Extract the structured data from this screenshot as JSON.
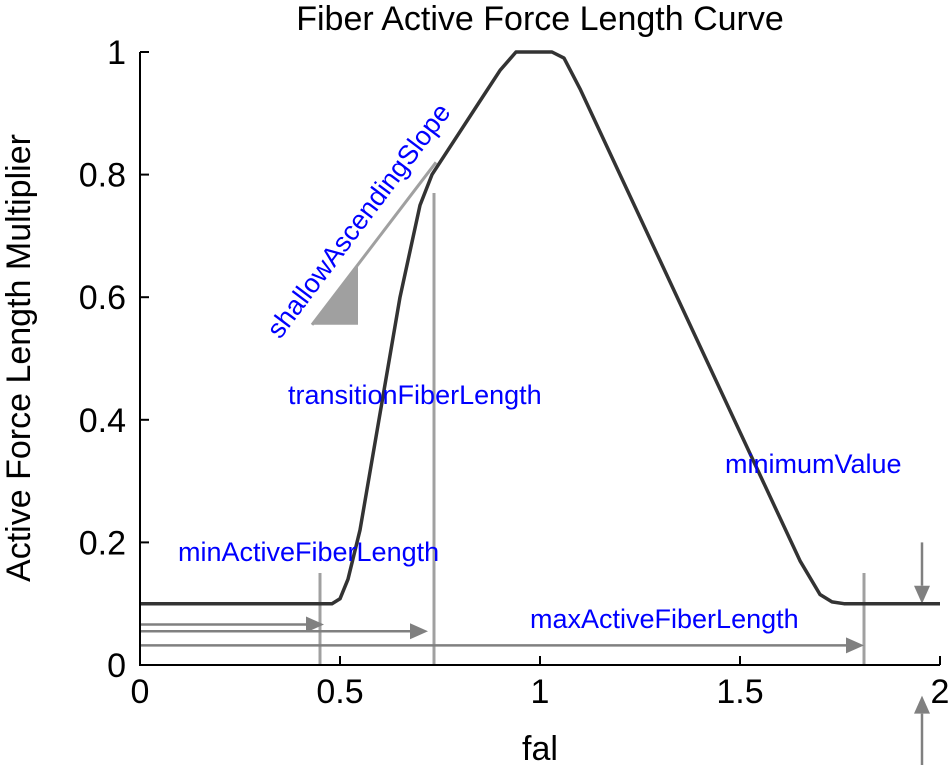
{
  "chart_data": {
    "type": "line",
    "title": "Fiber Active Force Length Curve",
    "xlabel": "fal",
    "ylabel": "Active Force Length Multiplier",
    "xlim": [
      0,
      2
    ],
    "ylim": [
      0,
      1
    ],
    "xticks": [
      {
        "value": 0,
        "label": "0"
      },
      {
        "value": 0.5,
        "label": "0.5"
      },
      {
        "value": 1,
        "label": "1"
      },
      {
        "value": 1.5,
        "label": "1.5"
      },
      {
        "value": 2,
        "label": "2"
      }
    ],
    "yticks": [
      {
        "value": 0,
        "label": "0"
      },
      {
        "value": 0.2,
        "label": "0.2"
      },
      {
        "value": 0.4,
        "label": "0.4"
      },
      {
        "value": 0.6,
        "label": "0.6"
      },
      {
        "value": 0.8,
        "label": "0.8"
      },
      {
        "value": 1,
        "label": "1"
      }
    ],
    "grid": false,
    "series": [
      {
        "color": "#333333",
        "x": [
          0,
          0.45,
          0.48,
          0.5,
          0.52,
          0.55,
          0.6,
          0.65,
          0.7,
          0.73,
          0.75,
          0.8,
          0.85,
          0.9,
          0.94,
          0.97,
          1.0,
          1.03,
          1.06,
          1.1,
          1.2,
          1.3,
          1.4,
          1.5,
          1.6,
          1.65,
          1.7,
          1.73,
          1.76,
          1.8,
          1.85,
          2.0
        ],
        "y": [
          0.1,
          0.1,
          0.1,
          0.108,
          0.14,
          0.22,
          0.41,
          0.6,
          0.75,
          0.8,
          0.82,
          0.87,
          0.92,
          0.97,
          1.0,
          1.0,
          1.0,
          1.0,
          0.99,
          0.94,
          0.8,
          0.66,
          0.52,
          0.38,
          0.24,
          0.17,
          0.115,
          0.103,
          0.1,
          0.1,
          0.1,
          0.1
        ]
      }
    ],
    "reference_lines": [
      {
        "x": 0.45,
        "y_from": 0,
        "y_to": 0.15
      },
      {
        "x": 0.735,
        "y_from": 0,
        "y_to": 0.77
      },
      {
        "x": 1.81,
        "y_from": 0,
        "y_to": 0.15
      }
    ],
    "slope_guide": {
      "x_from": 0.43,
      "y_from": 0.555,
      "x_to": 0.74,
      "y_to": 0.82
    },
    "arrows": [
      {
        "x_from": 0,
        "x_to": 0.46,
        "y": 0.066
      },
      {
        "x_from": 0,
        "x_to": 0.72,
        "y": 0.055
      },
      {
        "x_from": 0,
        "x_to": 1.81,
        "y": 0.032
      }
    ],
    "minimum_value_arrows": [
      {
        "x": 1.955,
        "y_from": 0.2,
        "y_to": 0.1
      },
      {
        "x": 1.955,
        "y_from": -0.18,
        "y_to": -0.05
      }
    ],
    "annotations": [
      {
        "key": "shallow",
        "text": "shallowAscendingSlope",
        "color": "#0000ff"
      },
      {
        "key": "transition",
        "text": "transitionFiberLength",
        "color": "#0000ff"
      },
      {
        "key": "minActive",
        "text": "minActiveFiberLength",
        "color": "#0000ff"
      },
      {
        "key": "maxActive",
        "text": "maxActiveFiberLength",
        "color": "#0000ff"
      },
      {
        "key": "minimum",
        "text": "minimumValue",
        "color": "#0000ff"
      }
    ]
  },
  "colors": {
    "curve": "#333333",
    "guide": "#a0a0a0",
    "arrow": "#808080",
    "annotation": "#0000ff",
    "axis": "#000000"
  }
}
